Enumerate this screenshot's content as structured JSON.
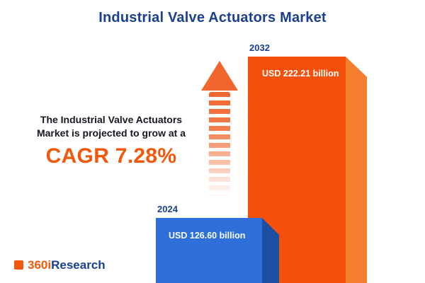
{
  "title": "Industrial Valve Actuators Market",
  "subtitle": {
    "line1": "The Industrial Valve Actuators",
    "line2": "Market is projected to grow at a",
    "cagr": "CAGR 7.28%"
  },
  "logo": {
    "prefix": "360i",
    "suffix": "Research"
  },
  "chart_data": {
    "type": "bar",
    "title": "Industrial Valve Actuators Market",
    "categories": [
      "2024",
      "2032"
    ],
    "values": [
      126.6,
      222.21
    ],
    "unit": "USD billion",
    "value_labels": [
      "USD 126.60 billion",
      "USD 222.21 billion"
    ],
    "growth_metric": "CAGR 7.28%",
    "cagr_percent": 7.28,
    "legend": "none",
    "grid": "off",
    "colors": {
      "bar_2024_front": "#2E6FD9",
      "bar_2024_side": "#1C4FA1",
      "bar_2032_front": "#F4500C",
      "bar_2032_side": "#F57E2E",
      "accent_orange": "#F2580C",
      "title_navy": "#1B3F91"
    }
  }
}
